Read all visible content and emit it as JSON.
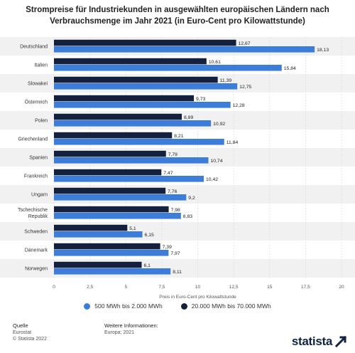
{
  "title_line1": "Strompreise für Industriekunden in ausgewählten europäischen Ländern nach",
  "title_line2": "Verbrauchsmenge im Jahr 2021 (in Euro-Cent pro Kilowattstunde)",
  "chart_data": {
    "type": "bar",
    "orientation": "horizontal",
    "categories": [
      "Deutschland",
      "Italien",
      "Slowakei",
      "Österreich",
      "Polen",
      "Griechenland",
      "Spanien",
      "Frankreich",
      "Ungarn",
      "Tschechische Republik",
      "Schweden",
      "Dänemark",
      "Norwegen"
    ],
    "category_lines": [
      [
        "Deutschland"
      ],
      [
        "Italien"
      ],
      [
        "Slowakei"
      ],
      [
        "Österreich"
      ],
      [
        "Polen"
      ],
      [
        "Griechenland"
      ],
      [
        "Spanien"
      ],
      [
        "Frankreich"
      ],
      [
        "Ungarn"
      ],
      [
        "Tschechische",
        "Republik"
      ],
      [
        "Schweden"
      ],
      [
        "Dänemark"
      ],
      [
        "Norwegen"
      ]
    ],
    "series": [
      {
        "name": "20.000 MWh bis 70.000 MWh",
        "color": "#14213d",
        "values": [
          12.67,
          10.61,
          11.39,
          9.73,
          8.89,
          8.21,
          7.79,
          7.47,
          7.76,
          7.98,
          5.1,
          7.39,
          6.1
        ],
        "labels": [
          "12,67",
          "10,61",
          "11,39",
          "9,73",
          "8,89",
          "8,21",
          "7,79",
          "7,47",
          "7,76",
          "7,98",
          "5,1",
          "7,39",
          "6,1"
        ]
      },
      {
        "name": "500 MWh bis 2.000 MWh",
        "color": "#3b7dd8",
        "values": [
          18.13,
          15.84,
          12.75,
          12.28,
          10.92,
          11.84,
          10.74,
          10.42,
          9.2,
          8.83,
          6.15,
          7.97,
          8.11
        ],
        "labels": [
          "18,13",
          "15,84",
          "12,75",
          "12,28",
          "10,92",
          "11,84",
          "10,74",
          "10,42",
          "9,2",
          "8,83",
          "6,15",
          "7,97",
          "8,11"
        ]
      }
    ],
    "x_ticks": [
      "0",
      "2,5",
      "5",
      "7,5",
      "10",
      "12,5",
      "15",
      "17,5",
      "20"
    ],
    "xlim": [
      0,
      20
    ],
    "xlabel": "Preis in Euro-Cent pro Kilowattstunde",
    "grid": true,
    "legend_position": "bottom"
  },
  "legend": {
    "item1": "500 MWh bis 2.000 MWh",
    "item2": "20.000 MWh bis 70.000 MWh",
    "color1": "#3b7dd8",
    "color2": "#14213d"
  },
  "footer": {
    "source_head": "Quelle",
    "source_line1": "Eurostat",
    "source_line2": "© Statista 2022",
    "info_head": "Weitere Informationen:",
    "info_line1": "Europa; 2021"
  },
  "brand": "statista"
}
